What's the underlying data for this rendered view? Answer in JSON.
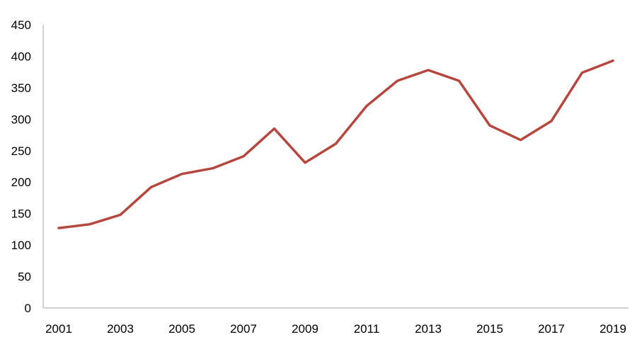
{
  "chart_data": {
    "type": "line",
    "title": "",
    "xlabel": "",
    "ylabel": "",
    "x": [
      2001,
      2002,
      2003,
      2004,
      2005,
      2006,
      2007,
      2008,
      2009,
      2010,
      2011,
      2012,
      2013,
      2014,
      2015,
      2016,
      2017,
      2018,
      2019
    ],
    "series": [
      {
        "values": [
          127,
          133,
          148,
          192,
          213,
          222,
          241,
          285,
          231,
          261,
          321,
          361,
          378,
          361,
          290,
          267,
          297,
          374,
          393
        ],
        "color": "#b5473e"
      }
    ],
    "ylim": [
      0,
      450
    ],
    "yticks": [
      0,
      50,
      100,
      150,
      200,
      250,
      300,
      350,
      400,
      450
    ],
    "xticks": [
      2001,
      2003,
      2005,
      2007,
      2009,
      2011,
      2013,
      2015,
      2017,
      2019
    ],
    "grid": false,
    "legend": "none"
  }
}
